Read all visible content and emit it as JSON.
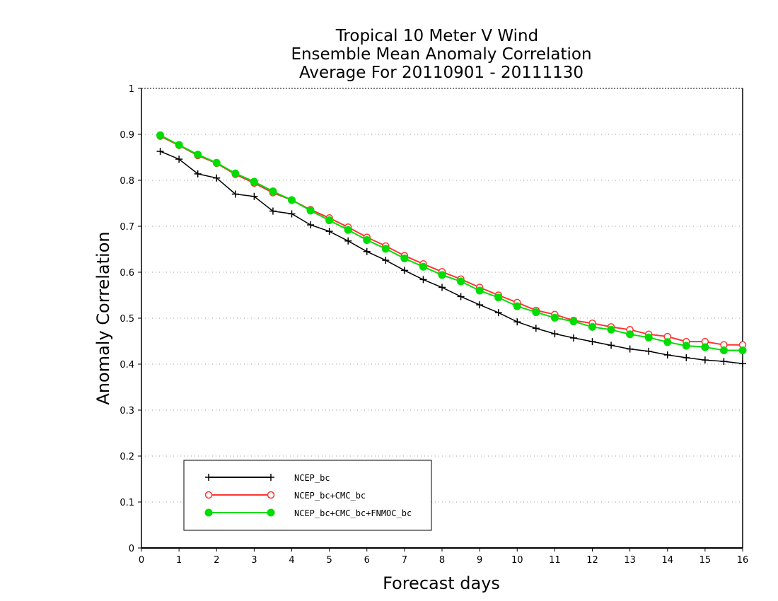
{
  "chart_data": {
    "type": "line",
    "title": [
      "Tropical 10 Meter V Wind",
      "Ensemble Mean Anomaly Correlation",
      "Average For 20110901 - 20111130"
    ],
    "xlabel": "Forecast days",
    "ylabel": "Anomaly Correlation",
    "xlim": [
      0,
      16
    ],
    "ylim": [
      0,
      1
    ],
    "xticks": [
      "0",
      "1",
      "2",
      "3",
      "4",
      "5",
      "6",
      "7",
      "8",
      "9",
      "10",
      "11",
      "12",
      "13",
      "14",
      "15",
      "16"
    ],
    "yticks": [
      "0",
      "0.1",
      "0.2",
      "0.3",
      "0.4",
      "0.5",
      "0.6",
      "0.7",
      "0.8",
      "0.9",
      "1"
    ],
    "grid": "horizontal dotted",
    "legend_position": "bottom-left",
    "x": [
      0.5,
      1,
      1.5,
      2,
      2.5,
      3,
      3.5,
      4,
      4.5,
      5,
      5.5,
      6,
      6.5,
      7,
      7.5,
      8,
      8.5,
      9,
      9.5,
      10,
      10.5,
      11,
      11.5,
      12,
      12.5,
      13,
      13.5,
      14,
      14.5,
      15,
      15.5,
      16
    ],
    "series": [
      {
        "name": "NCEP_bc",
        "color": "#000000",
        "marker": "plus",
        "values": [
          0.863,
          0.846,
          0.814,
          0.805,
          0.77,
          0.765,
          0.733,
          0.727,
          0.703,
          0.689,
          0.668,
          0.645,
          0.626,
          0.604,
          0.584,
          0.567,
          0.547,
          0.529,
          0.512,
          0.492,
          0.478,
          0.466,
          0.457,
          0.449,
          0.441,
          0.433,
          0.428,
          0.42,
          0.414,
          0.409,
          0.406,
          0.401
        ]
      },
      {
        "name": "NCEP_bc+CMC_bc",
        "color": "#ff3333",
        "marker": "open-circle",
        "values": [
          0.896,
          0.876,
          0.854,
          0.837,
          0.813,
          0.794,
          0.773,
          0.757,
          0.736,
          0.718,
          0.698,
          0.676,
          0.657,
          0.636,
          0.618,
          0.601,
          0.585,
          0.567,
          0.55,
          0.534,
          0.517,
          0.508,
          0.495,
          0.489,
          0.481,
          0.475,
          0.465,
          0.46,
          0.449,
          0.449,
          0.442,
          0.442
        ]
      },
      {
        "name": "NCEP_bc+CMC_bc+FNMOC_bc",
        "color": "#00dd00",
        "marker": "filled-circle",
        "values": [
          0.898,
          0.877,
          0.856,
          0.838,
          0.815,
          0.797,
          0.776,
          0.757,
          0.734,
          0.713,
          0.692,
          0.67,
          0.651,
          0.63,
          0.612,
          0.594,
          0.58,
          0.56,
          0.545,
          0.526,
          0.513,
          0.501,
          0.493,
          0.481,
          0.475,
          0.465,
          0.458,
          0.448,
          0.44,
          0.437,
          0.43,
          0.43
        ]
      }
    ]
  }
}
